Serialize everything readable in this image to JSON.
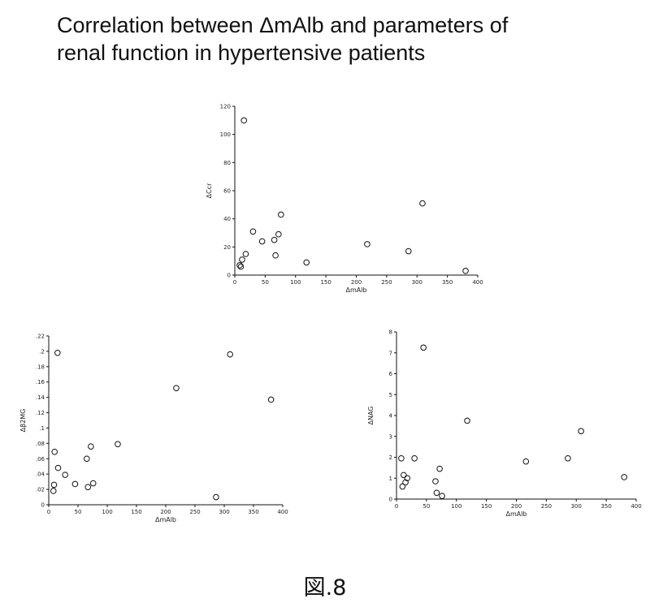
{
  "page": {
    "title_line1": "Correlation between ΔmAlb and parameters of",
    "title_line2": "renal function in hypertensive patients",
    "figure_label": "図.8"
  },
  "chart_data": [
    {
      "type": "scatter",
      "xlabel": "ΔmAlb",
      "ylabel": "ΔCcr",
      "xlim": [
        0,
        400
      ],
      "ylim": [
        0,
        120
      ],
      "xticks": [
        0,
        50,
        100,
        150,
        200,
        250,
        300,
        350,
        400
      ],
      "yticks": [
        0,
        20,
        40,
        60,
        80,
        100,
        120
      ],
      "ytick_labels": [
        "0",
        "20",
        "40",
        "60",
        "80",
        "100",
        "120"
      ],
      "grid": false,
      "points": [
        {
          "x": 8,
          "y": 7
        },
        {
          "x": 10,
          "y": 6
        },
        {
          "x": 12,
          "y": 11
        },
        {
          "x": 15,
          "y": 110
        },
        {
          "x": 18,
          "y": 15
        },
        {
          "x": 30,
          "y": 31
        },
        {
          "x": 45,
          "y": 24
        },
        {
          "x": 65,
          "y": 25
        },
        {
          "x": 67,
          "y": 14
        },
        {
          "x": 72,
          "y": 29
        },
        {
          "x": 76,
          "y": 43
        },
        {
          "x": 118,
          "y": 9
        },
        {
          "x": 218,
          "y": 22
        },
        {
          "x": 286,
          "y": 17
        },
        {
          "x": 309,
          "y": 51
        },
        {
          "x": 380,
          "y": 3
        }
      ]
    },
    {
      "type": "scatter",
      "xlabel": "ΔmAlb",
      "ylabel": "Δβ2MG",
      "xlim": [
        0,
        400
      ],
      "ylim": [
        0,
        0.22
      ],
      "xticks": [
        0,
        50,
        100,
        150,
        200,
        250,
        300,
        350,
        400
      ],
      "yticks": [
        0,
        0.02,
        0.04,
        0.06,
        0.08,
        0.1,
        0.12,
        0.14,
        0.16,
        0.18,
        0.2,
        0.22
      ],
      "ytick_labels": [
        "0",
        ".02",
        ".04",
        ".06",
        ".08",
        ".1",
        ".12",
        ".14",
        ".16",
        ".18",
        ".2",
        ".22"
      ],
      "grid": false,
      "points": [
        {
          "x": 8,
          "y": 0.018
        },
        {
          "x": 9,
          "y": 0.026
        },
        {
          "x": 10,
          "y": 0.069
        },
        {
          "x": 15,
          "y": 0.198
        },
        {
          "x": 16,
          "y": 0.048
        },
        {
          "x": 28,
          "y": 0.039
        },
        {
          "x": 45,
          "y": 0.027
        },
        {
          "x": 65,
          "y": 0.06
        },
        {
          "x": 67,
          "y": 0.023
        },
        {
          "x": 72,
          "y": 0.076
        },
        {
          "x": 76,
          "y": 0.028
        },
        {
          "x": 118,
          "y": 0.079
        },
        {
          "x": 218,
          "y": 0.152
        },
        {
          "x": 286,
          "y": 0.01
        },
        {
          "x": 310,
          "y": 0.196
        },
        {
          "x": 380,
          "y": 0.137
        }
      ]
    },
    {
      "type": "scatter",
      "xlabel": "ΔmAlb",
      "ylabel": "ΔNAG",
      "xlim": [
        0,
        400
      ],
      "ylim": [
        0,
        8
      ],
      "xticks": [
        0,
        50,
        100,
        150,
        200,
        250,
        300,
        350,
        400
      ],
      "yticks": [
        0,
        1,
        2,
        3,
        4,
        5,
        6,
        7,
        8
      ],
      "ytick_labels": [
        "0",
        "1",
        "2",
        "3",
        "4",
        "5",
        "6",
        "7",
        "8"
      ],
      "grid": false,
      "points": [
        {
          "x": 8,
          "y": 1.95
        },
        {
          "x": 10,
          "y": 0.6
        },
        {
          "x": 12,
          "y": 1.15
        },
        {
          "x": 15,
          "y": 0.8
        },
        {
          "x": 18,
          "y": 1.0
        },
        {
          "x": 30,
          "y": 1.95
        },
        {
          "x": 45,
          "y": 7.25
        },
        {
          "x": 65,
          "y": 0.85
        },
        {
          "x": 67,
          "y": 0.3
        },
        {
          "x": 72,
          "y": 1.45
        },
        {
          "x": 76,
          "y": 0.15
        },
        {
          "x": 118,
          "y": 3.75
        },
        {
          "x": 216,
          "y": 1.8
        },
        {
          "x": 286,
          "y": 1.95
        },
        {
          "x": 308,
          "y": 3.25
        },
        {
          "x": 380,
          "y": 1.05
        }
      ]
    }
  ]
}
